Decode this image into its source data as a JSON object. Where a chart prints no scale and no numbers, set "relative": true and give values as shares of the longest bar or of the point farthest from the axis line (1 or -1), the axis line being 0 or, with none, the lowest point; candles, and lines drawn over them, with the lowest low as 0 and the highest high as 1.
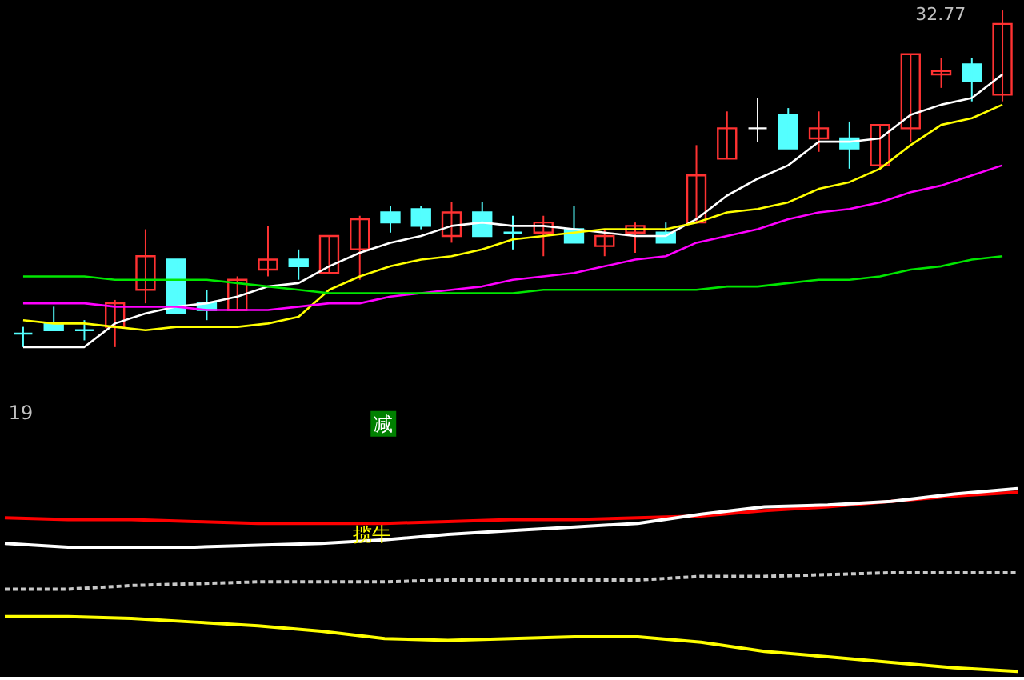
{
  "chart_data": [
    {
      "type": "candlestick",
      "relative": true,
      "categories": [
        null,
        null,
        null,
        null,
        null,
        null,
        null,
        null,
        null,
        null,
        null,
        null,
        null,
        null,
        null,
        null,
        null,
        null,
        null,
        null,
        null,
        null,
        null,
        null,
        null,
        null,
        null,
        null,
        null,
        null,
        null,
        null,
        null
      ],
      "ohlc": [
        [
          0.04,
          0.06,
          0,
          0.04
        ],
        [
          0.07,
          0.12,
          0.05,
          0.05
        ],
        [
          0.05,
          0.08,
          0.02,
          0.05
        ],
        [
          0.06,
          0.14,
          0,
          0.13
        ],
        [
          0.17,
          0.35,
          0.13,
          0.27
        ],
        [
          0.26,
          0.26,
          0.1,
          0.1
        ],
        [
          0.13,
          0.17,
          0.08,
          0.11
        ],
        [
          0.11,
          0.21,
          0.11,
          0.2
        ],
        [
          0.23,
          0.36,
          0.21,
          0.26
        ],
        [
          0.26,
          0.29,
          0.2,
          0.24
        ],
        [
          0.22,
          0.33,
          0.22,
          0.33
        ],
        [
          0.29,
          0.39,
          0.2,
          0.38
        ],
        [
          0.4,
          0.42,
          0.34,
          0.37
        ],
        [
          0.41,
          0.42,
          0.35,
          0.36
        ],
        [
          0.33,
          0.43,
          0.31,
          0.4
        ],
        [
          0.4,
          0.43,
          0.33,
          0.33
        ],
        [
          0.34,
          0.39,
          0.29,
          0.34
        ],
        [
          0.34,
          0.39,
          0.27,
          0.37
        ],
        [
          0.35,
          0.42,
          0.31,
          0.31
        ],
        [
          0.3,
          0.35,
          0.27,
          0.33
        ],
        [
          0.34,
          0.37,
          0.28,
          0.36
        ],
        [
          0.34,
          0.37,
          0.31,
          0.31
        ],
        [
          0.37,
          0.6,
          0.37,
          0.51
        ],
        [
          0.56,
          0.7,
          0.56,
          0.65
        ],
        [
          0.65,
          0.74,
          0.61,
          0.65
        ],
        [
          0.69,
          0.71,
          0.59,
          0.59
        ],
        [
          0.62,
          0.7,
          0.58,
          0.65
        ],
        [
          0.62,
          0.67,
          0.53,
          0.59
        ],
        [
          0.54,
          0.66,
          0.53,
          0.66
        ],
        [
          0.65,
          0.87,
          0.61,
          0.87
        ],
        [
          0.81,
          0.86,
          0.77,
          0.82
        ],
        [
          0.84,
          0.86,
          0.73,
          0.79
        ],
        [
          0.75,
          1.0,
          0.73,
          0.96
        ]
      ],
      "colors": [
        "#54ffff",
        "#54ffff",
        "#54ffff",
        "#ff3232",
        "#ff3232",
        "#54ffff",
        "#54ffff",
        "#ff3232",
        "#ff3232",
        "#54ffff",
        "#ff3232",
        "#ff3232",
        "#54ffff",
        "#54ffff",
        "#ff3232",
        "#54ffff",
        "#54ffff",
        "#ff3232",
        "#54ffff",
        "#ff3232",
        "#ff3232",
        "#54ffff",
        "#ff3232",
        "#ff3232",
        "#ffffff",
        "#54ffff",
        "#ff3232",
        "#54ffff",
        "#ff3232",
        "#ff3232",
        "#ff3232",
        "#54ffff",
        "#ff3232"
      ],
      "series": [
        {
          "type": "line",
          "color": "#ffffff",
          "values": [
            0,
            0,
            0,
            0.07,
            0.1,
            0.12,
            0.13,
            0.15,
            0.18,
            0.19,
            0.24,
            0.28,
            0.31,
            0.33,
            0.36,
            0.37,
            0.36,
            0.36,
            0.35,
            0.34,
            0.33,
            0.33,
            0.38,
            0.45,
            0.5,
            0.54,
            0.61,
            0.61,
            0.62,
            0.69,
            0.72,
            0.74,
            0.81
          ]
        },
        {
          "type": "line",
          "color": "#ffff00",
          "values": [
            0.08,
            0.07,
            0.07,
            0.06,
            0.05,
            0.06,
            0.06,
            0.06,
            0.07,
            0.09,
            0.17,
            0.21,
            0.24,
            0.26,
            0.27,
            0.29,
            0.32,
            0.33,
            0.34,
            0.35,
            0.35,
            0.35,
            0.37,
            0.4,
            0.41,
            0.43,
            0.47,
            0.49,
            0.53,
            0.6,
            0.66,
            0.68,
            0.72
          ]
        },
        {
          "type": "line",
          "color": "#ff00ff",
          "values": [
            0.13,
            0.13,
            0.13,
            0.12,
            0.12,
            0.12,
            0.11,
            0.11,
            0.11,
            0.12,
            0.13,
            0.13,
            0.15,
            0.16,
            0.17,
            0.18,
            0.2,
            0.21,
            0.22,
            0.24,
            0.26,
            0.27,
            0.31,
            0.33,
            0.35,
            0.38,
            0.4,
            0.41,
            0.43,
            0.46,
            0.48,
            0.51,
            0.54
          ]
        },
        {
          "type": "line",
          "color": "#00e600",
          "values": [
            0.21,
            0.21,
            0.21,
            0.2,
            0.2,
            0.2,
            0.2,
            0.19,
            0.18,
            0.17,
            0.16,
            0.16,
            0.16,
            0.16,
            0.16,
            0.16,
            0.16,
            0.17,
            0.17,
            0.17,
            0.17,
            0.17,
            0.17,
            0.18,
            0.18,
            0.19,
            0.2,
            0.2,
            0.21,
            0.23,
            0.24,
            0.26,
            0.27
          ]
        }
      ],
      "annotations": [
        "32.77"
      ]
    },
    {
      "type": "line",
      "relative": true,
      "categories": [
        null,
        null,
        null,
        null,
        null,
        null,
        null,
        null,
        null,
        null,
        null,
        null,
        null,
        null,
        null,
        null,
        null
      ],
      "series": [
        {
          "color": "#ff0000",
          "values": [
            0.84,
            0.83,
            0.83,
            0.82,
            0.81,
            0.81,
            0.81,
            0.82,
            0.83,
            0.83,
            0.84,
            0.85,
            0.88,
            0.9,
            0.93,
            0.96,
            0.98
          ]
        },
        {
          "color": "#ffffff",
          "values": [
            0.7,
            0.68,
            0.68,
            0.68,
            0.69,
            0.7,
            0.72,
            0.75,
            0.77,
            0.79,
            0.81,
            0.86,
            0.9,
            0.91,
            0.93,
            0.97,
            1.0
          ]
        },
        {
          "color": "#c8c8c8",
          "line_style": "dashed",
          "values": [
            0.45,
            0.45,
            0.47,
            0.48,
            0.49,
            0.49,
            0.49,
            0.5,
            0.5,
            0.5,
            0.5,
            0.52,
            0.52,
            0.53,
            0.54,
            0.54,
            0.54
          ]
        },
        {
          "color": "#ffff00",
          "values": [
            0.3,
            0.3,
            0.29,
            0.27,
            0.25,
            0.22,
            0.18,
            0.17,
            0.18,
            0.19,
            0.19,
            0.16,
            0.11,
            0.08,
            0.05,
            0.02,
            0.0
          ]
        }
      ],
      "annotations": [
        "19",
        "减",
        "揽牛"
      ]
    }
  ]
}
